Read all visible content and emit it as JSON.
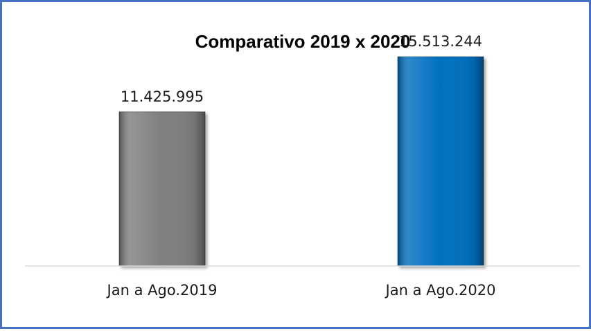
{
  "chart_data": {
    "type": "bar",
    "title": "Comparativo 2019 x 2020",
    "categories": [
      "Jan a Ago.2019",
      "Jan a Ago.2020"
    ],
    "values": [
      11425995,
      15513244
    ],
    "value_labels": [
      "11.425.995",
      "15.513.244"
    ],
    "bar_colors": [
      "#7f7f7f",
      "#0070c0"
    ],
    "xlabel": "",
    "ylabel": "",
    "ylim": [
      0,
      17000000
    ],
    "grid": false,
    "legend": "none"
  },
  "colors": {
    "border": "#4472c4",
    "axis": "#d9d9d9"
  }
}
